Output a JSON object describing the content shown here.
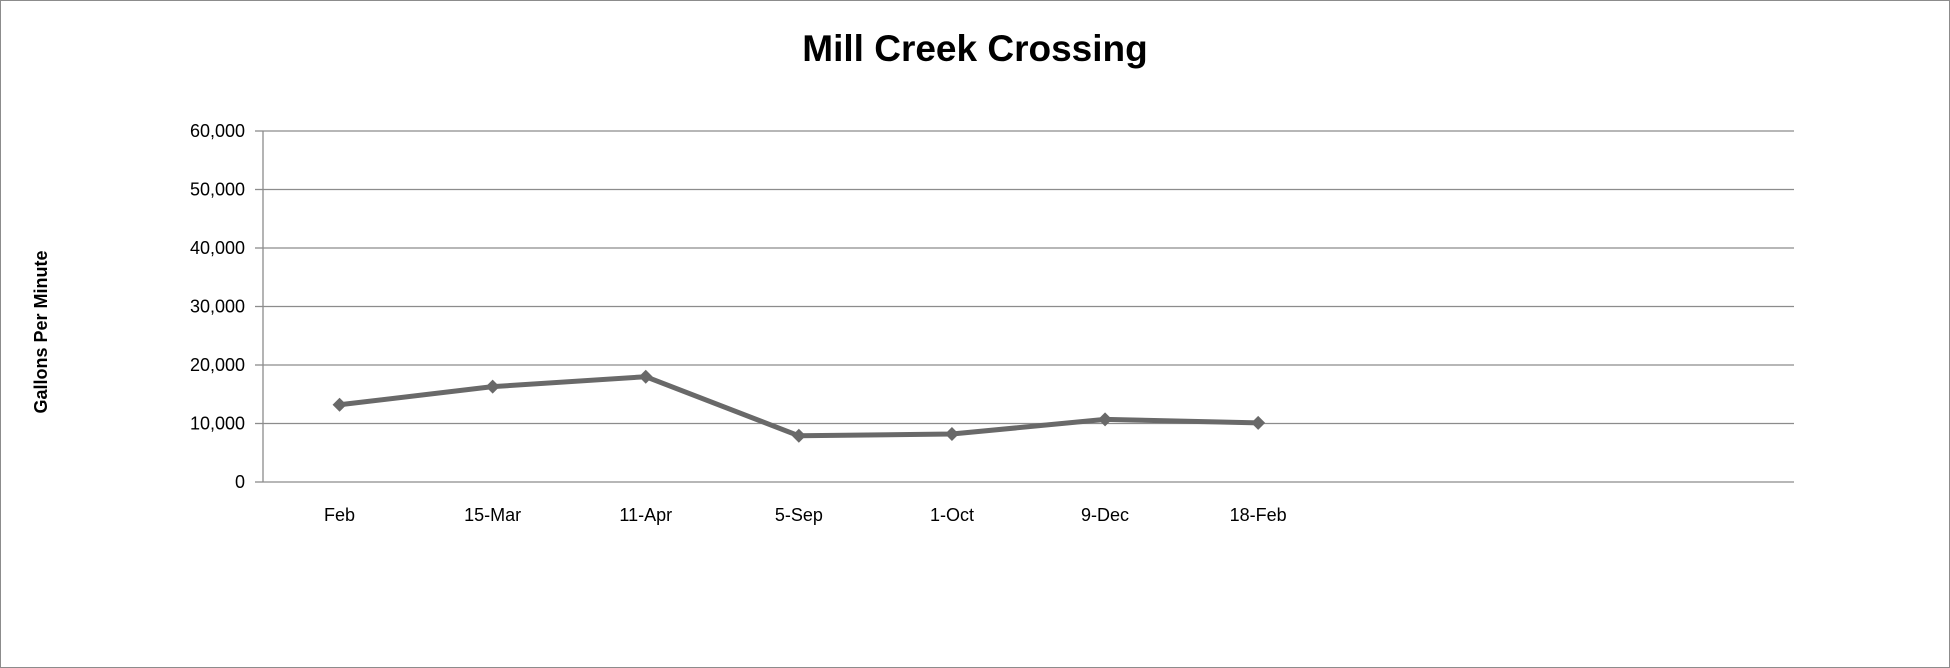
{
  "chart_data": {
    "type": "line",
    "title": "Mill Creek Crossing",
    "xlabel": "",
    "ylabel": "Gallons Per Minute",
    "categories": [
      "Feb",
      "15-Mar",
      "11-Apr",
      "5-Sep",
      "1-Oct",
      "9-Dec",
      "18-Feb"
    ],
    "series": [
      {
        "values": [
          13200,
          16300,
          18000,
          7900,
          8200,
          10700,
          10100
        ]
      }
    ],
    "ylim": [
      0,
      60000
    ],
    "y_ticks": [
      0,
      10000,
      20000,
      30000,
      40000,
      50000,
      60000
    ],
    "y_tick_labels": [
      "0",
      "10,000",
      "20,000",
      "30,000",
      "40,000",
      "50,000",
      "60,000"
    ],
    "grid": true,
    "legend": "none",
    "series_color": "#696969",
    "marker": "diamond"
  }
}
